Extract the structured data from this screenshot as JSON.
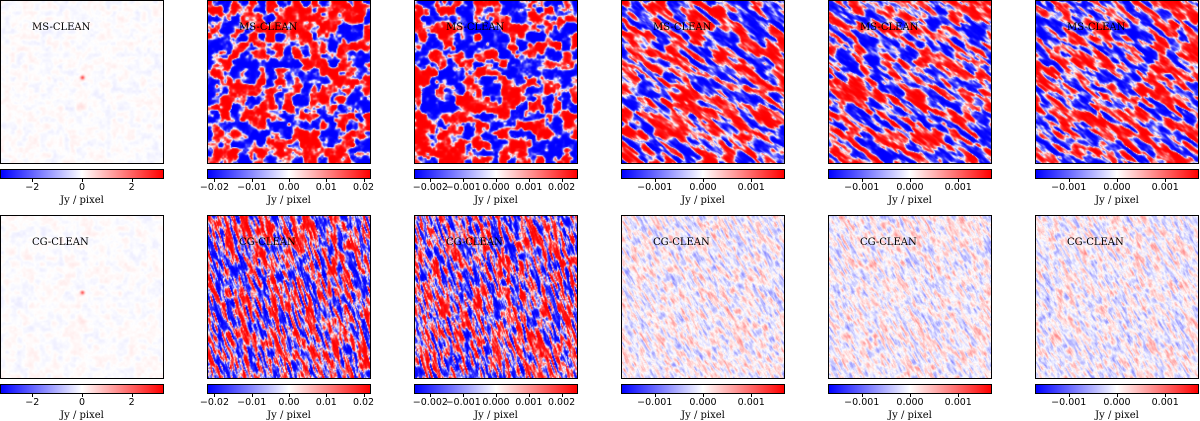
{
  "chart_data": {
    "type": "heatmap",
    "colormap": [
      "#0000ff",
      "#ffffff",
      "#ff0000"
    ],
    "colorbar_label": "Jy / pixel",
    "rows": [
      {
        "label": "MS-CLEAN",
        "panels": [
          {
            "range": [
              -3.3,
              3.3
            ],
            "ticks": [
              {
                "v": -2,
                "t": "−2"
              },
              {
                "v": 0,
                "t": "0"
              },
              {
                "v": 2,
                "t": "2"
              }
            ],
            "style": "residual"
          },
          {
            "range": [
              -0.022,
              0.022
            ],
            "ticks": [
              {
                "v": -0.02,
                "t": "−0.02"
              },
              {
                "v": -0.01,
                "t": "−0.01"
              },
              {
                "v": 0,
                "t": "0.00"
              },
              {
                "v": 0.01,
                "t": "0.01"
              },
              {
                "v": 0.02,
                "t": "0.02"
              }
            ],
            "style": "blobs"
          },
          {
            "range": [
              -0.0025,
              0.0025
            ],
            "ticks": [
              {
                "v": -0.002,
                "t": "−0.002"
              },
              {
                "v": -0.001,
                "t": "−0.001"
              },
              {
                "v": 0,
                "t": "0.000"
              },
              {
                "v": 0.001,
                "t": "0.001"
              },
              {
                "v": 0.002,
                "t": "0.002"
              }
            ],
            "style": "blobs"
          },
          {
            "range": [
              -0.0017,
              0.0017
            ],
            "ticks": [
              {
                "v": -0.001,
                "t": "−0.001"
              },
              {
                "v": 0,
                "t": "0.000"
              },
              {
                "v": 0.001,
                "t": "0.001"
              }
            ],
            "style": "stripes"
          },
          {
            "range": [
              -0.0017,
              0.0017
            ],
            "ticks": [
              {
                "v": -0.001,
                "t": "−0.001"
              },
              {
                "v": 0,
                "t": "0.000"
              },
              {
                "v": 0.001,
                "t": "0.001"
              }
            ],
            "style": "stripes"
          },
          {
            "range": [
              -0.0017,
              0.0017
            ],
            "ticks": [
              {
                "v": -0.001,
                "t": "−0.001"
              },
              {
                "v": 0,
                "t": "0.000"
              },
              {
                "v": 0.001,
                "t": "0.001"
              }
            ],
            "style": "stripes"
          }
        ]
      },
      {
        "label": "CG-CLEAN",
        "panels": [
          {
            "range": [
              -3.3,
              3.3
            ],
            "ticks": [
              {
                "v": -2,
                "t": "−2"
              },
              {
                "v": 0,
                "t": "0"
              },
              {
                "v": 2,
                "t": "2"
              }
            ],
            "style": "residual"
          },
          {
            "range": [
              -0.022,
              0.022
            ],
            "ticks": [
              {
                "v": -0.02,
                "t": "−0.02"
              },
              {
                "v": -0.01,
                "t": "−0.01"
              },
              {
                "v": 0,
                "t": "0.00"
              },
              {
                "v": 0.01,
                "t": "0.01"
              },
              {
                "v": 0.02,
                "t": "0.02"
              }
            ],
            "style": "streaks"
          },
          {
            "range": [
              -0.0025,
              0.0025
            ],
            "ticks": [
              {
                "v": -0.002,
                "t": "−0.002"
              },
              {
                "v": -0.001,
                "t": "−0.001"
              },
              {
                "v": 0,
                "t": "0.000"
              },
              {
                "v": 0.001,
                "t": "0.001"
              },
              {
                "v": 0.002,
                "t": "0.002"
              }
            ],
            "style": "streaks"
          },
          {
            "range": [
              -0.0017,
              0.0017
            ],
            "ticks": [
              {
                "v": -0.001,
                "t": "−0.001"
              },
              {
                "v": 0,
                "t": "0.000"
              },
              {
                "v": 0.001,
                "t": "0.001"
              }
            ],
            "style": "noise"
          },
          {
            "range": [
              -0.0017,
              0.0017
            ],
            "ticks": [
              {
                "v": -0.001,
                "t": "−0.001"
              },
              {
                "v": 0,
                "t": "0.000"
              },
              {
                "v": 0.001,
                "t": "0.001"
              }
            ],
            "style": "noise"
          },
          {
            "range": [
              -0.0017,
              0.0017
            ],
            "ticks": [
              {
                "v": -0.001,
                "t": "−0.001"
              },
              {
                "v": 0,
                "t": "0.000"
              },
              {
                "v": 0.001,
                "t": "0.001"
              }
            ],
            "style": "noise"
          }
        ]
      }
    ]
  }
}
